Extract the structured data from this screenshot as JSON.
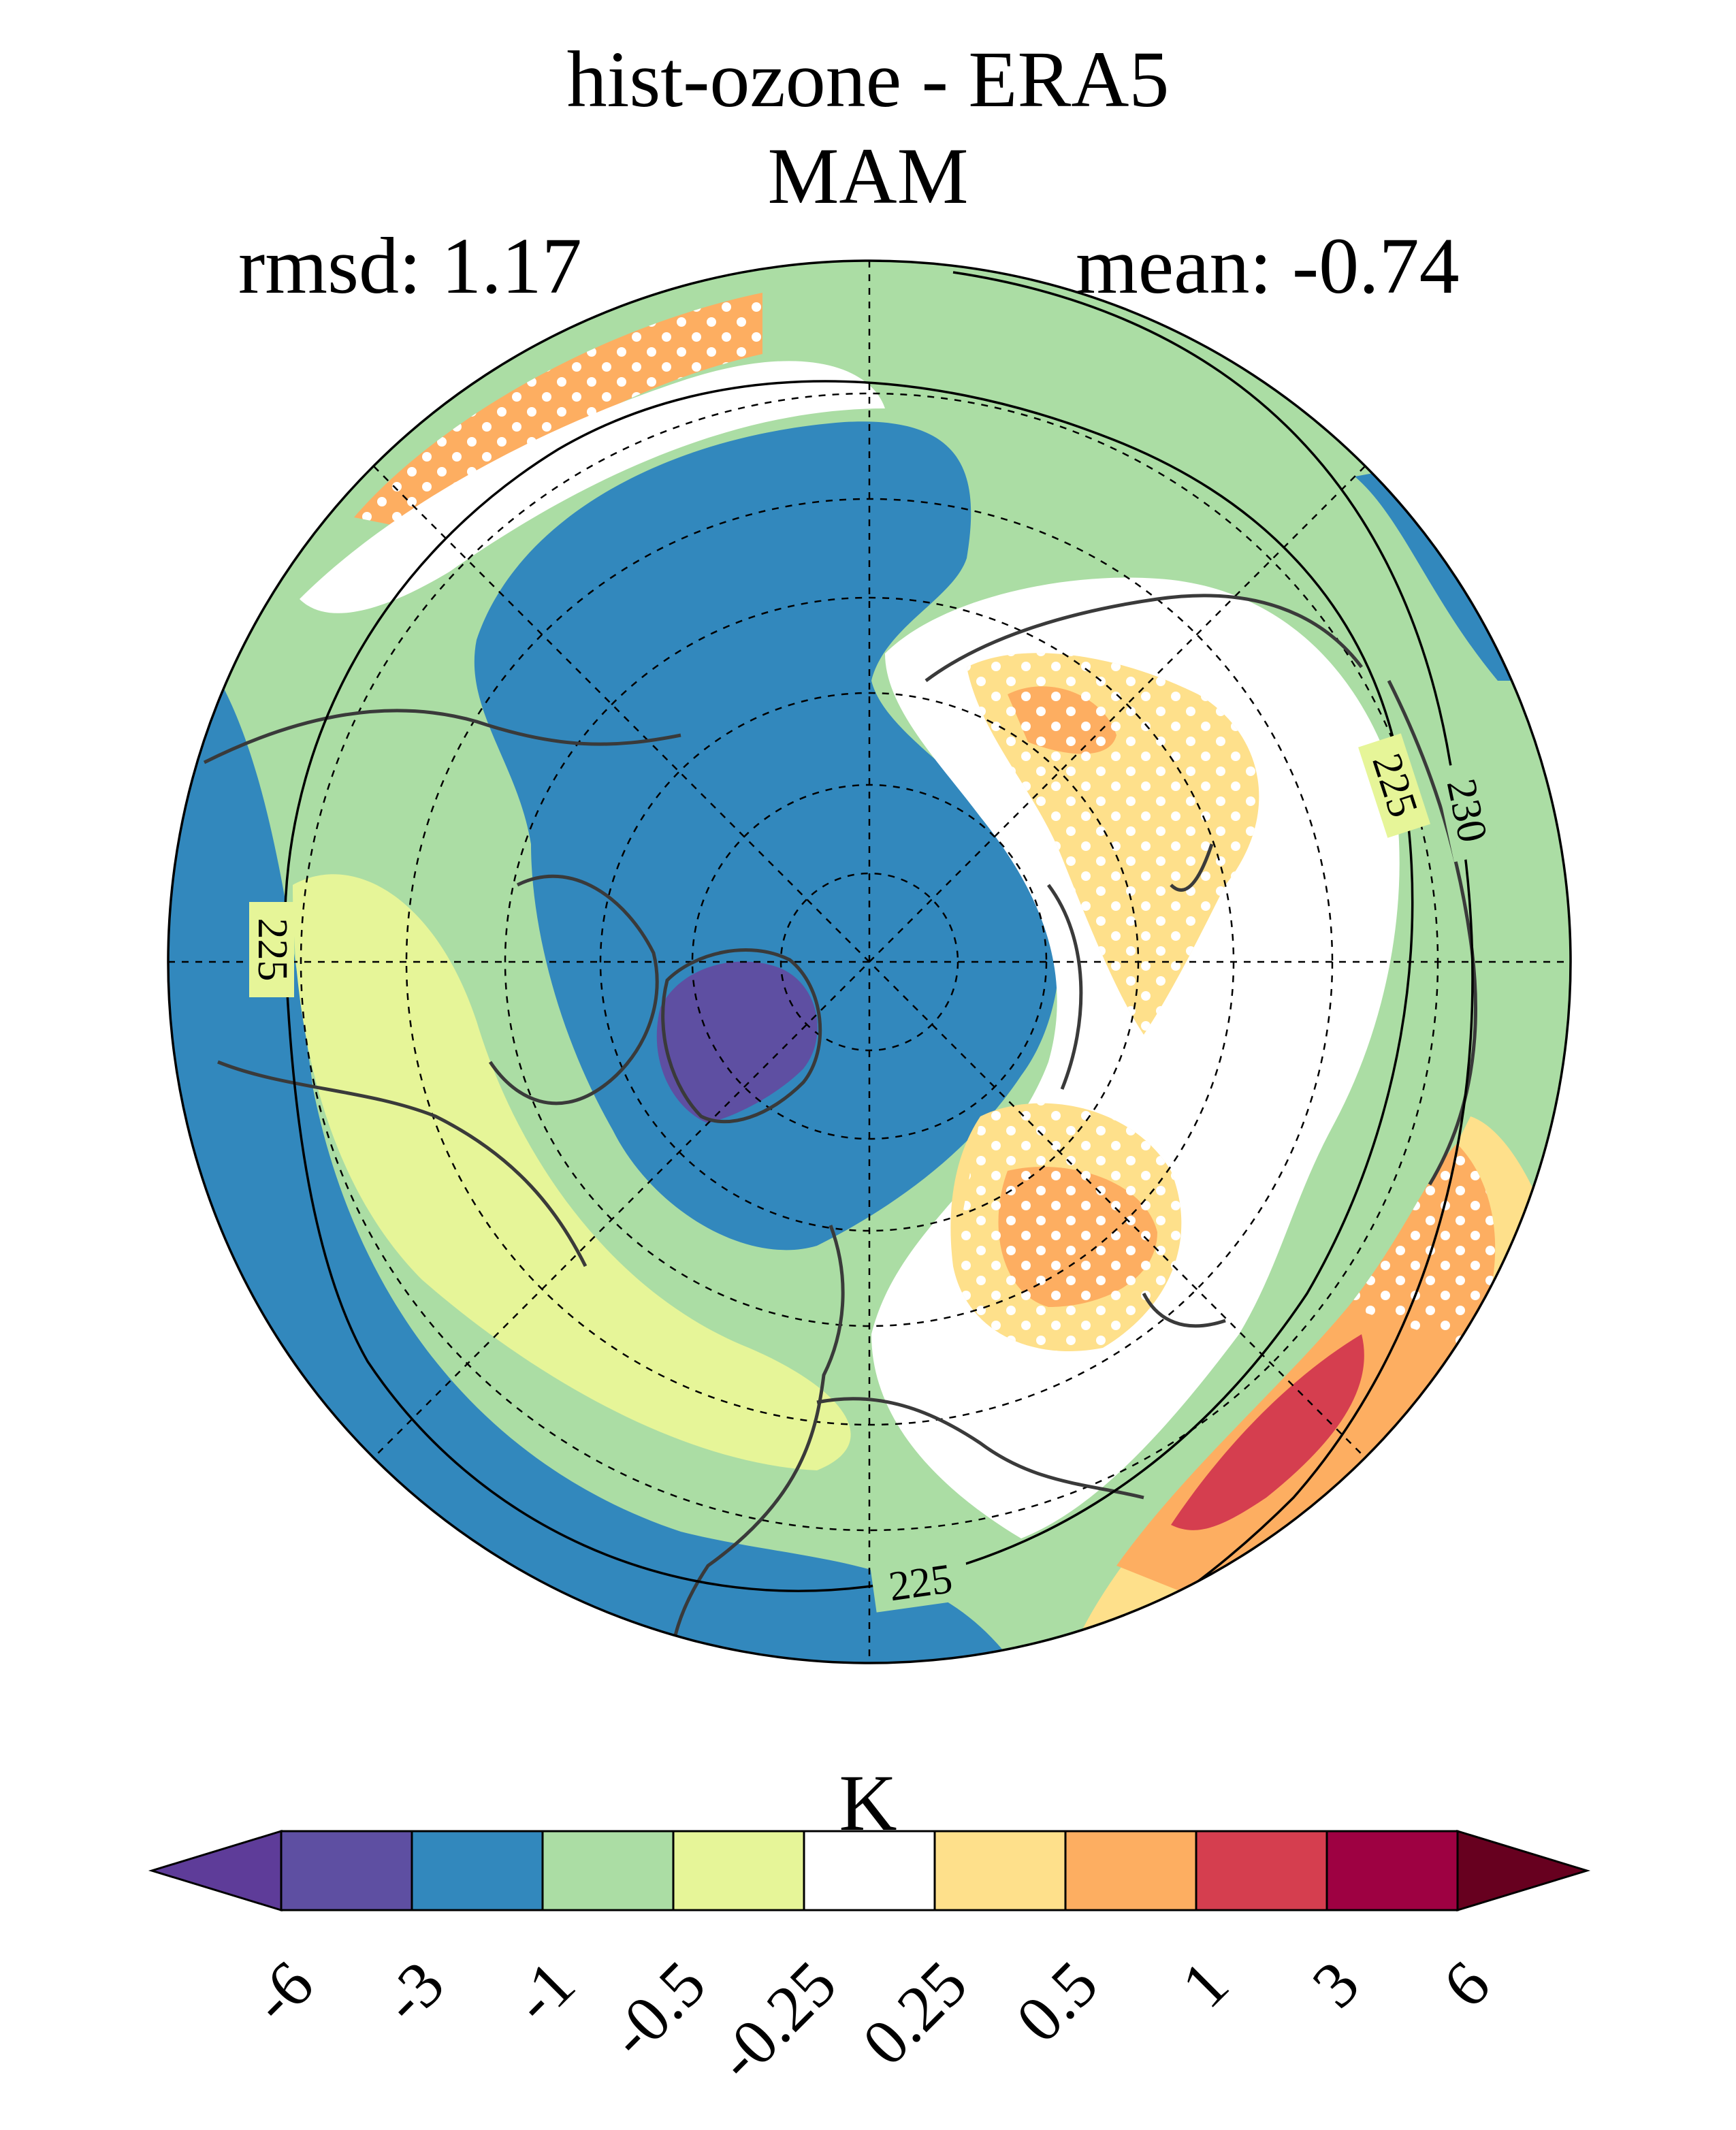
{
  "title": {
    "line1": "hist-ozone - ERA5",
    "line2": "MAM"
  },
  "stats": {
    "rmsd_label": "rmsd: 1.17",
    "mean_label": "mean: -0.74"
  },
  "map": {
    "projection": "north-polar-stereographic",
    "contour_labels": [
      "225",
      "225",
      "225",
      "230"
    ],
    "stippling": "significance dots (white)"
  },
  "colorbar": {
    "unit": "K",
    "ticks": [
      "-6",
      "-3",
      "-1",
      "-0.5",
      "-0.25",
      "0.25",
      "0.5",
      "1",
      "3",
      "6"
    ],
    "colors": [
      "#5e3c99",
      "#5e4fa2",
      "#3288bd",
      "#abdda4",
      "#e6f598",
      "#ffffff",
      "#fee08b",
      "#fdae61",
      "#d53e4f",
      "#9e0142",
      "#67001f"
    ],
    "extend": "both"
  }
}
